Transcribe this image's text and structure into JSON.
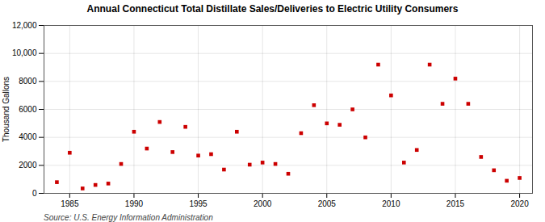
{
  "chart_data": {
    "type": "scatter",
    "title": "Annual Connecticut Total Distillate Sales/Deliveries to Electric Utility Consumers",
    "ylabel": "Thousand Gallons",
    "source": "Source: U.S. Energy Information Administration",
    "x": [
      1984,
      1985,
      1986,
      1987,
      1988,
      1989,
      1990,
      1991,
      1992,
      1993,
      1994,
      1995,
      1996,
      1997,
      1998,
      1999,
      2000,
      2001,
      2002,
      2003,
      2004,
      2005,
      2006,
      2007,
      2008,
      2009,
      2010,
      2011,
      2012,
      2013,
      2014,
      2015,
      2016,
      2017,
      2018,
      2019,
      2020
    ],
    "values": [
      800,
      2900,
      350,
      600,
      700,
      2100,
      4400,
      3200,
      5100,
      2950,
      4750,
      2700,
      2800,
      1700,
      4400,
      2050,
      2200,
      2100,
      1400,
      4300,
      6300,
      5000,
      4900,
      6000,
      4000,
      9200,
      7000,
      2200,
      3100,
      9200,
      6400,
      8200,
      6400,
      2600,
      1650,
      900,
      1100
    ],
    "color": "#cc0000",
    "marker": "square",
    "xlim": [
      1983,
      2021
    ],
    "xticks": [
      1985,
      1990,
      1995,
      2000,
      2005,
      2010,
      2015,
      2020
    ],
    "ylim": [
      0,
      12000
    ],
    "yticks": [
      0,
      2000,
      4000,
      6000,
      8000,
      {
        "value": 10000,
        "label": "10,000"
      },
      {
        "value": 12000,
        "label": "12,000"
      }
    ],
    "grid": true
  }
}
